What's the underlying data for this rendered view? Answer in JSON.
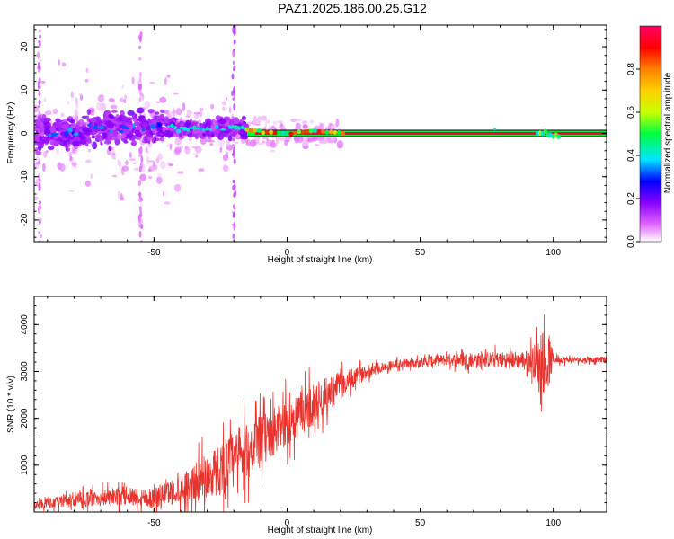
{
  "figure_title": "PAZ1.2025.186.00.25.G12",
  "chart_data": [
    {
      "type": "heatmap",
      "title": "PAZ1.2025.186.00.25.G12",
      "xlabel": "Height of straight line (km)",
      "ylabel": "Frequency (Hz)",
      "xlim": [
        -95,
        120
      ],
      "ylim": [
        -25,
        25
      ],
      "x_ticks": [
        -50,
        0,
        50,
        100
      ],
      "y_ticks": [
        -20,
        -10,
        0,
        10,
        20
      ],
      "colorbar": {
        "label": "Normalized spectral amplitude",
        "range": [
          0,
          1
        ],
        "ticks": [
          0.0,
          0.2,
          0.4,
          0.6,
          0.8
        ],
        "colormap": [
          "#ffffff",
          "#e066ff",
          "#8a00ff",
          "#0000ff",
          "#00e5ff",
          "#00ff40",
          "#c8ff00",
          "#ffd000",
          "#ff8000",
          "#ff0000",
          "#ff0066"
        ]
      },
      "ridge": {
        "description_points": [
          [
            -75,
            1.5
          ],
          [
            -60,
            1
          ],
          [
            -45,
            1.5
          ],
          [
            -40,
            1
          ],
          [
            -30,
            1
          ],
          [
            -20,
            1.5
          ],
          [
            -10,
            0.5
          ],
          [
            0,
            0
          ],
          [
            10,
            0.5
          ],
          [
            20,
            0
          ],
          [
            50,
            0
          ],
          [
            95,
            0
          ],
          [
            100,
            -0.5
          ],
          [
            120,
            0
          ]
        ]
      }
    },
    {
      "type": "line",
      "xlabel": "Height of straight line (km)",
      "ylabel": "SNR (10 * v/v)",
      "xlim": [
        -95,
        120
      ],
      "ylim": [
        0,
        4600
      ],
      "x_ticks": [
        -50,
        0,
        50,
        100
      ],
      "y_ticks": [
        1000,
        2000,
        3000,
        4000
      ],
      "color": "#e8332d",
      "envelope": {
        "x": [
          -95,
          -80,
          -60,
          -50,
          -40,
          -30,
          -20,
          -10,
          0,
          10,
          20,
          30,
          40,
          50,
          60,
          70,
          80,
          90,
          95,
          97,
          99,
          100,
          110,
          120
        ],
        "mean": [
          150,
          250,
          350,
          300,
          500,
          750,
          1100,
          1500,
          1900,
          2300,
          2700,
          3000,
          3150,
          3200,
          3250,
          3250,
          3250,
          3250,
          3200,
          3100,
          3250,
          3250,
          3250,
          3250
        ],
        "amp": [
          150,
          300,
          400,
          450,
          600,
          1000,
          1300,
          1100,
          1000,
          900,
          600,
          250,
          200,
          200,
          250,
          300,
          350,
          400,
          1000,
          1300,
          900,
          150,
          120,
          120
        ]
      }
    }
  ]
}
